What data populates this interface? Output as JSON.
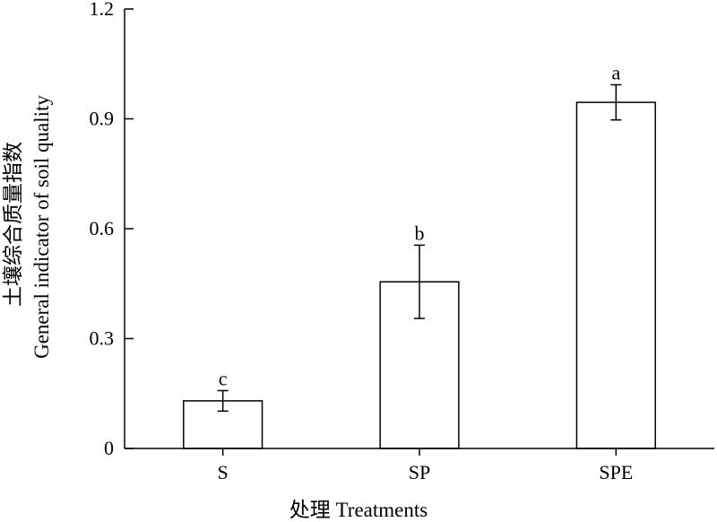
{
  "chart_data": {
    "type": "bar",
    "categories": [
      "S",
      "SP",
      "SPE"
    ],
    "values": [
      0.13,
      0.455,
      0.945
    ],
    "errors": [
      0.028,
      0.1,
      0.048
    ],
    "significance": [
      "c",
      "b",
      "a"
    ],
    "ylim": [
      0,
      1.2
    ],
    "yticks": [
      "0",
      "0.3",
      "0.6",
      "0.9",
      "1.2"
    ],
    "ytick_values": [
      0,
      0.3,
      0.6,
      0.9,
      1.2
    ],
    "xlabel": "处理 Treatments",
    "ylabel_cn": "土壤综合质量指数",
    "ylabel_en": "General indicator of soil quality",
    "grid": false,
    "bar_fill": "#ffffff",
    "bar_stroke": "#000000"
  }
}
